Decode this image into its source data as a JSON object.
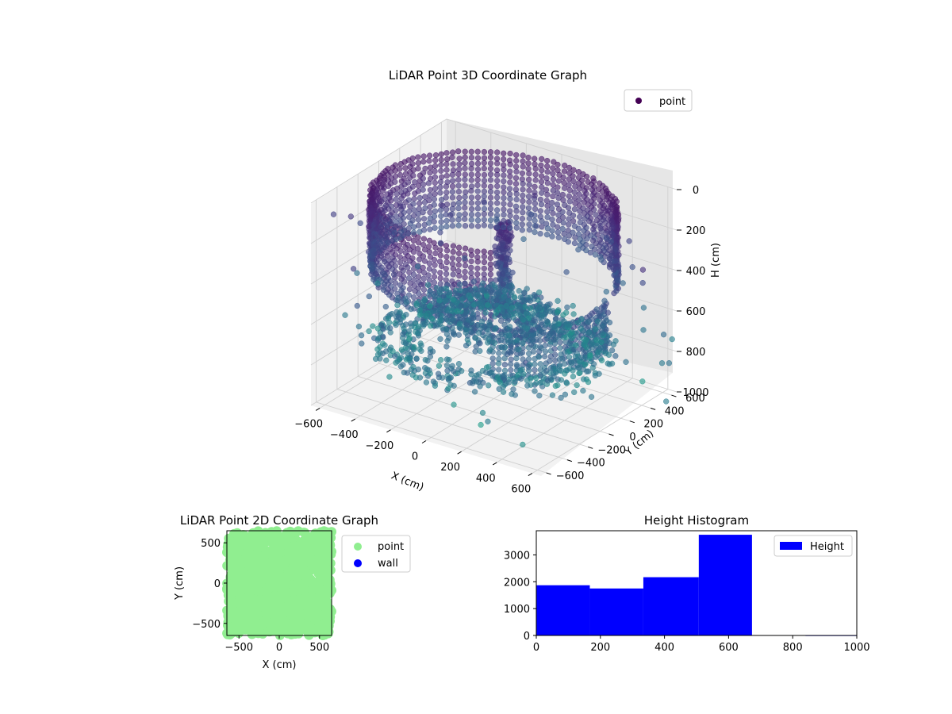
{
  "chart_data": [
    {
      "type": "scatter3d",
      "title": "LiDAR Point 3D Coordinate Graph",
      "xlabel": "X (cm)",
      "ylabel": "Y (cm)",
      "zlabel": "H (cm)",
      "xlim": [
        -650,
        650
      ],
      "ylim": [
        -650,
        650
      ],
      "zlim": [
        0,
        1000
      ],
      "zaxis_inverted": true,
      "x_ticks": [
        "−600",
        "−400",
        "−200",
        "0",
        "200",
        "400",
        "600"
      ],
      "y_ticks": [
        "−600",
        "−400",
        "−200",
        "0",
        "200",
        "400",
        "600"
      ],
      "z_ticks": [
        "0",
        "200",
        "400",
        "600",
        "800",
        "1000"
      ],
      "colormap": "viridis",
      "grid": true,
      "legend": {
        "position": "top-right",
        "entries": [
          {
            "label": "point",
            "color": "#440154"
          }
        ]
      },
      "series": [
        {
          "name": "point",
          "shapes": [
            {
              "kind": "ring-wall",
              "radius": 600,
              "h_top": 30,
              "h_bottom": 420,
              "angle_from_deg": 20,
              "angle_to_deg": 300
            },
            {
              "kind": "ring-wall",
              "radius": 560,
              "h_top": 430,
              "h_bottom": 660,
              "angle_from_deg": 300,
              "angle_to_deg": 380
            },
            {
              "kind": "floor-ring",
              "radius_inner": 360,
              "radius_outer": 600,
              "h": 720
            },
            {
              "kind": "floor-ring",
              "radius_inner": 120,
              "radius_outer": 360,
              "h": 600
            },
            {
              "kind": "column",
              "x": 20,
              "y": 60,
              "h_top": 150,
              "h_bottom": 620
            },
            {
              "kind": "outliers",
              "count": 90,
              "h_range": [
                150,
                900
              ]
            }
          ]
        }
      ]
    },
    {
      "type": "scatter",
      "title": "LiDAR Point 2D Coordinate Graph",
      "xlabel": "X (cm)",
      "ylabel": "Y (cm)",
      "xlim": [
        -650,
        650
      ],
      "ylim": [
        -650,
        650
      ],
      "x_ticks": [
        "−500",
        "0",
        "500"
      ],
      "y_ticks": [
        "500",
        "0",
        "−500"
      ],
      "legend": {
        "position": "outside-right",
        "entries": [
          {
            "label": "point",
            "color": "#90ee90"
          },
          {
            "label": "wall",
            "color": "#0000ff"
          }
        ]
      },
      "series": [
        {
          "name": "point",
          "color": "#90ee90",
          "fill": "whole-area",
          "x_range": [
            -650,
            650
          ],
          "y_range": [
            -650,
            650
          ]
        },
        {
          "name": "wall",
          "color": "#0000ff",
          "values": []
        }
      ]
    },
    {
      "type": "histogram",
      "title": "Height Histogram",
      "xlim": [
        0,
        1000
      ],
      "ylim": [
        0,
        3900
      ],
      "x_ticks": [
        0,
        200,
        400,
        600,
        800,
        1000
      ],
      "y_ticks": [
        0,
        1000,
        2000,
        3000
      ],
      "color": "#0000ff",
      "legend": {
        "position": "top-right",
        "entries": [
          {
            "label": "Height",
            "color": "#0000ff"
          }
        ]
      },
      "bins": [
        {
          "from": 0,
          "to": 167,
          "count": 1870
        },
        {
          "from": 167,
          "to": 334,
          "count": 1750
        },
        {
          "from": 334,
          "to": 507,
          "count": 2170
        },
        {
          "from": 507,
          "to": 673,
          "count": 3750
        },
        {
          "from": 673,
          "to": 840,
          "count": 15
        },
        {
          "from": 840,
          "to": 1000,
          "count": 10
        }
      ]
    }
  ]
}
